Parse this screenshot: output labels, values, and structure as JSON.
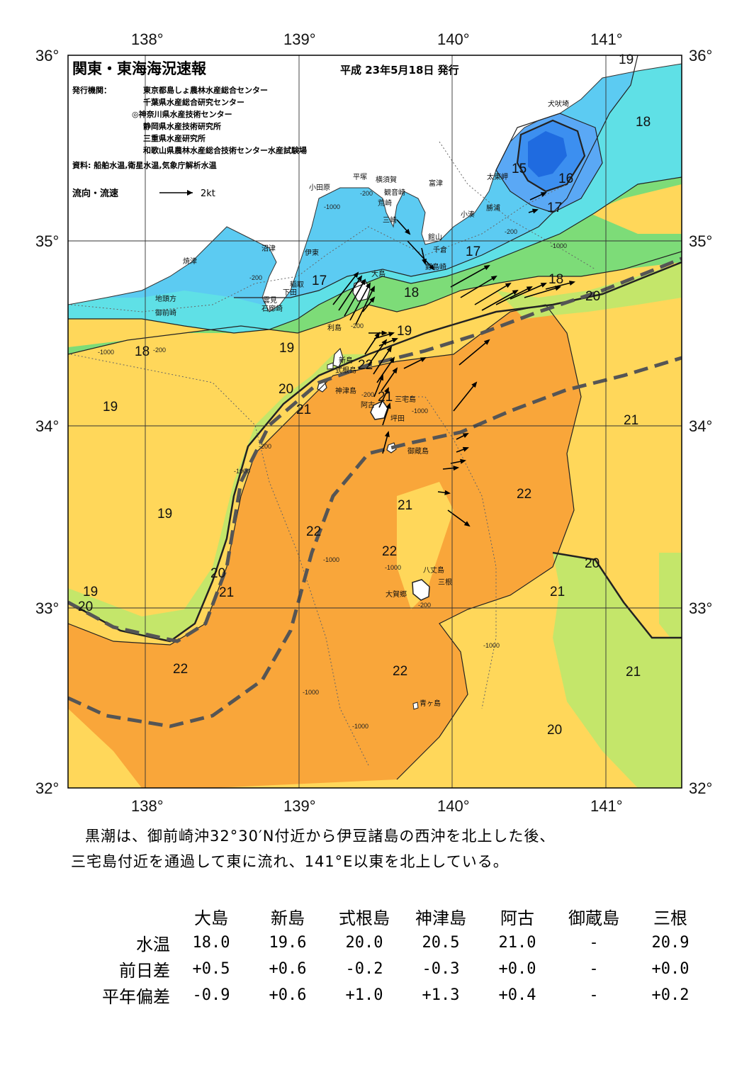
{
  "header": {
    "title": "関東・東海海況速報",
    "date": "平成 23年5月18日 発行",
    "issuer_label": "発行機関：",
    "issuers": [
      "東京都島しょ農林水産総合センター",
      "千葉県水産総合研究センター",
      "◎神奈川県水産技術センター",
      "静岡県水産技術研究所",
      "三重県水産研究所",
      "和歌山県農林水産総合技術センター水産試験場"
    ],
    "source": "資料: 船舶水温,衛星水温,気象庁解析水温",
    "current_legend": "流向・流速",
    "current_scale": "2kt"
  },
  "axes": {
    "lon_ticks": [
      "138°",
      "139°",
      "140°",
      "141°"
    ],
    "lat_ticks": [
      "36°",
      "35°",
      "34°",
      "33°",
      "32°"
    ]
  },
  "places": {
    "inubosaki": "犬吠埼",
    "taitomisaki": "太東岬",
    "katsuura": "勝浦",
    "kominato": "小湊",
    "tomitsu": "富津",
    "yokosuka": "横須賀",
    "kannonzaki": "観音崎",
    "hiratsuka": "平塚",
    "odawara": "小田原",
    "arasaki": "荒崎",
    "misaki": "三崎",
    "tateyama": "館山",
    "chikura": "千倉",
    "nojimazaki": "野島崎",
    "numazu": "沼津",
    "ito": "伊東",
    "yaizu": "焼津",
    "oshima": "大島",
    "inatori": "稲取",
    "shimoda": "下田",
    "mera": "雲見",
    "irozaki": "石廊崎",
    "jitokata": "地頭方",
    "omaezaki": "御前崎",
    "toshima": "利島",
    "niijima": "新島",
    "shikinejima": "式根島",
    "kozushima": "神津島",
    "miyakejima": "三宅島",
    "ako": "阿古",
    "tsubota": "坪田",
    "mikurajima": "御蔵島",
    "hachijojima": "八丈島",
    "mitsune": "三根",
    "okago": "大賀郷",
    "aogashima": "青ヶ島"
  },
  "isotherm_labels": [
    "19",
    "18",
    "15",
    "16",
    "17",
    "17",
    "17",
    "18",
    "18",
    "20",
    "17",
    "18",
    "19",
    "19",
    "18",
    "22",
    "20",
    "21",
    "21",
    "19",
    "19",
    "21",
    "22",
    "22",
    "21",
    "22",
    "20",
    "21",
    "19",
    "20",
    "20",
    "21",
    "22",
    "21",
    "22",
    "22",
    "20",
    "21"
  ],
  "depth_labels": [
    "-200",
    "-200",
    "-1000",
    "-200",
    "-1000",
    "-200",
    "-200",
    "-1000",
    "-200",
    "-1000",
    "-1000",
    "-200",
    "-1000",
    "-1000",
    "-1000",
    "-1000",
    "-200",
    "-1000"
  ],
  "colors": {
    "t14_15": "#1f6be0",
    "t15_16": "#3c8ff0",
    "t16_17": "#5aa8f5",
    "t17_18": "#5ccbf2",
    "t18_19": "#5fe0e6",
    "t19_20": "#7ddc78",
    "t20_21": "#c4e66a",
    "t21_22": "#ffd75a",
    "t22_plus": "#f9a63a",
    "land": "#ffffff",
    "kuroshio_axis": "#555555"
  },
  "summary": [
    "黒潮は、御前崎沖32°30′N付近から伊豆諸島の西沖を北上した後、",
    "三宅島付近を通過して東に流れ、141°E以東を北上している。"
  ],
  "stats": {
    "columns": [
      "大島",
      "新島",
      "式根島",
      "神津島",
      "阿古",
      "御蔵島",
      "三根"
    ],
    "rows": [
      {
        "label": "水温",
        "values": [
          "18.0",
          "19.6",
          "20.0",
          "20.5",
          "21.0",
          "-",
          "20.9"
        ]
      },
      {
        "label": "前日差",
        "values": [
          "+0.5",
          "+0.6",
          "-0.2",
          "-0.3",
          "+0.0",
          "-",
          "+0.0"
        ]
      },
      {
        "label": "平年偏差",
        "values": [
          "-0.9",
          "+0.6",
          "+1.0",
          "+1.3",
          "+0.4",
          "-",
          "+0.2"
        ]
      }
    ]
  }
}
